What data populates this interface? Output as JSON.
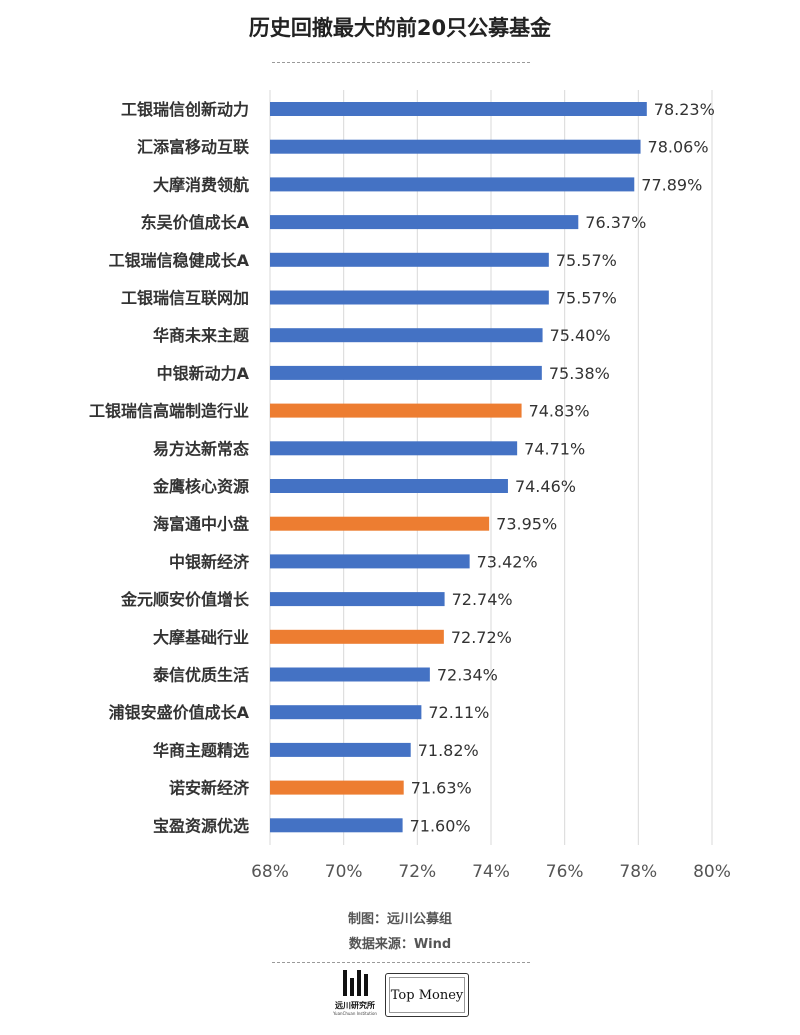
{
  "title": "历史回撤最大的前20只公募基金",
  "credits": {
    "maker": "制图：远川公募组",
    "source": "数据来源：Wind"
  },
  "logos": {
    "yuanchuan_text": "远川研究所",
    "yuanchuan_sub": "YuanChuan Institution",
    "topmoney_text": "Top Money"
  },
  "colors": {
    "blue": "#4472C4",
    "orange": "#ED7D31",
    "grid": "#d9d9d9",
    "label": "#333333",
    "tick": "#555555"
  },
  "chart_data": {
    "type": "bar",
    "orientation": "horizontal",
    "categories": [
      "工银瑞信创新动力",
      "汇添富移动互联",
      "大摩消费领航",
      "东吴价值成长A",
      "工银瑞信稳健成长A",
      "工银瑞信互联网加",
      "华商未来主题",
      "中银新动力A",
      "工银瑞信高端制造行业",
      "易方达新常态",
      "金鹰核心资源",
      "海富通中小盘",
      "中银新经济",
      "金元顺安价值增长",
      "大摩基础行业",
      "泰信优质生活",
      "浦银安盛价值成长A",
      "华商主题精选",
      "诺安新经济",
      "宝盈资源优选"
    ],
    "values": [
      78.23,
      78.06,
      77.89,
      76.37,
      75.57,
      75.57,
      75.4,
      75.38,
      74.83,
      74.71,
      74.46,
      73.95,
      73.42,
      72.74,
      72.72,
      72.34,
      72.11,
      71.82,
      71.63,
      71.6
    ],
    "data_labels": [
      "78.23%",
      "78.06%",
      "77.89%",
      "76.37%",
      "75.57%",
      "75.57%",
      "75.40%",
      "75.38%",
      "74.83%",
      "74.71%",
      "74.46%",
      "73.95%",
      "73.42%",
      "72.74%",
      "72.72%",
      "72.34%",
      "72.11%",
      "71.82%",
      "71.63%",
      "71.60%"
    ],
    "highlight": [
      false,
      false,
      false,
      false,
      false,
      false,
      false,
      false,
      true,
      false,
      false,
      true,
      false,
      false,
      true,
      false,
      false,
      false,
      true,
      false
    ],
    "xlim": [
      68,
      80
    ],
    "x_ticks": [
      68,
      70,
      72,
      74,
      76,
      78,
      80
    ],
    "x_tick_labels": [
      "68%",
      "70%",
      "72%",
      "74%",
      "76%",
      "78%",
      "80%"
    ],
    "grid": "vertical",
    "legend": "none"
  }
}
